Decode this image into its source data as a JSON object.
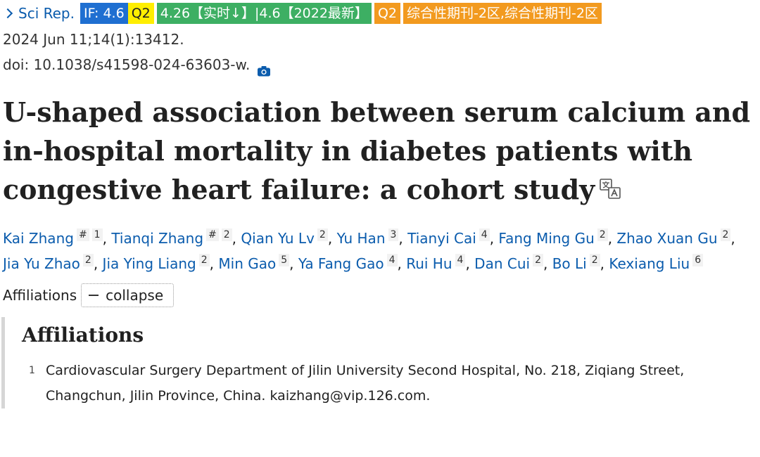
{
  "citation": {
    "journal": "Sci Rep.",
    "badges": [
      {
        "text": "IF: 4.6",
        "style": "blue"
      },
      {
        "text": "Q2",
        "style": "yellow"
      },
      {
        "text": "4.26【实时↓】|4.6【2022最新】",
        "style": "green"
      },
      {
        "text": "Q2",
        "style": "orange"
      },
      {
        "text": "综合性期刊-2区,综合性期刊-2区",
        "style": "orange"
      }
    ],
    "date_volume": "2024 Jun 11;14(1):13412.",
    "doi": "doi: 10.1038/s41598-024-63603-w."
  },
  "article": {
    "title": "U-shaped association between serum calcium and in-hospital mortality in diabetes patients with congestive heart failure: a cohort study"
  },
  "authors": [
    {
      "name": "Kai Zhang",
      "sups": [
        "#",
        "1"
      ]
    },
    {
      "name": "Tianqi Zhang",
      "sups": [
        "#",
        "2"
      ]
    },
    {
      "name": "Qian Yu Lv",
      "sups": [
        "2"
      ]
    },
    {
      "name": "Yu Han",
      "sups": [
        "3"
      ]
    },
    {
      "name": "Tianyi Cai",
      "sups": [
        "4"
      ]
    },
    {
      "name": "Fang Ming Gu",
      "sups": [
        "2"
      ]
    },
    {
      "name": "Zhao Xuan Gu",
      "sups": [
        "2"
      ]
    },
    {
      "name": "Jia Yu Zhao",
      "sups": [
        "2"
      ]
    },
    {
      "name": "Jia Ying Liang",
      "sups": [
        "2"
      ]
    },
    {
      "name": "Min Gao",
      "sups": [
        "5"
      ]
    },
    {
      "name": "Ya Fang Gao",
      "sups": [
        "4"
      ]
    },
    {
      "name": "Rui Hu",
      "sups": [
        "4"
      ]
    },
    {
      "name": "Dan Cui",
      "sups": [
        "2"
      ]
    },
    {
      "name": "Bo Li",
      "sups": [
        "2"
      ]
    },
    {
      "name": "Kexiang Liu",
      "sups": [
        "6"
      ]
    }
  ],
  "affiliations": {
    "toggle_label": "Affiliations",
    "collapse_label": "collapse",
    "heading": "Affiliations",
    "items": [
      {
        "num": "1",
        "text": "Cardiovascular Surgery Department of Jilin University Second Hospital, No. 218, Ziqiang Street, Changchun, Jilin Province, China. kaizhang@vip.126.com."
      }
    ]
  },
  "icons": {
    "journal": "chevron-right-icon",
    "doi": "camera-icon",
    "title": "translate-icon",
    "collapse": "minus-icon"
  },
  "colors": {
    "link": "#0b5cad",
    "badge_blue": "#1f6fd1",
    "badge_yellow": "#ffee00",
    "badge_green": "#3daf63",
    "badge_orange": "#f29a1f"
  }
}
